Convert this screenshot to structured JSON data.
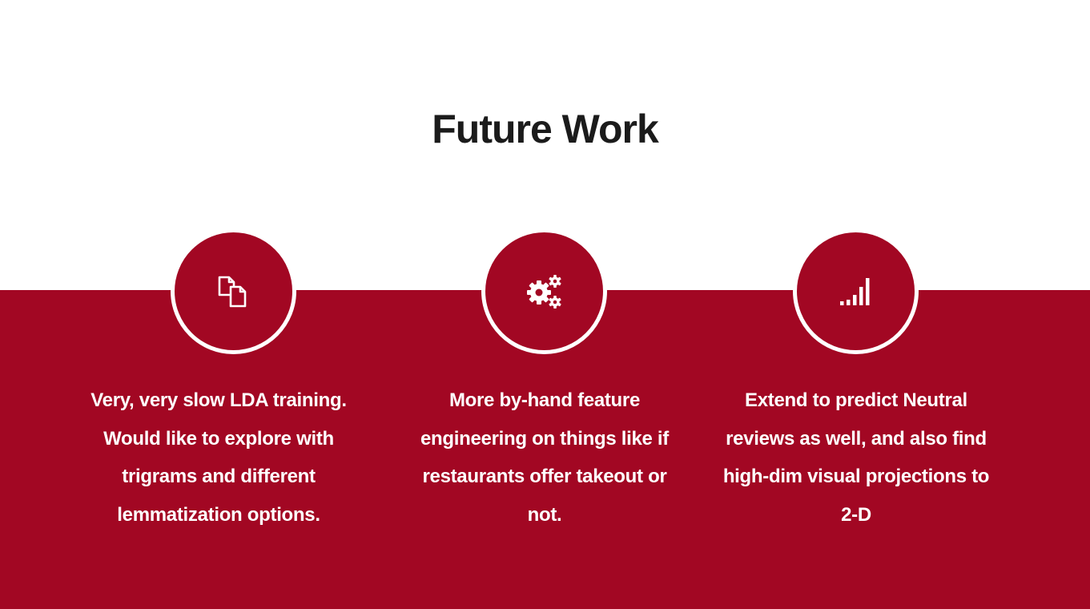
{
  "slide": {
    "title": "Future Work",
    "colors": {
      "accent": "#a20723",
      "background": "#ffffff",
      "title_text": "#1b1b1b",
      "card_text": "#ffffff"
    },
    "items": [
      {
        "icon": "copy-documents-icon",
        "text": "Very, very slow LDA training. Would like to explore with trigrams and different lemmatization options."
      },
      {
        "icon": "gears-icon",
        "text": "More by-hand feature engineering on things like if restaurants offer takeout or not."
      },
      {
        "icon": "signal-bars-icon",
        "text": "Extend to predict Neutral reviews as well, and also find high-dim visual projections to 2-D"
      }
    ]
  }
}
